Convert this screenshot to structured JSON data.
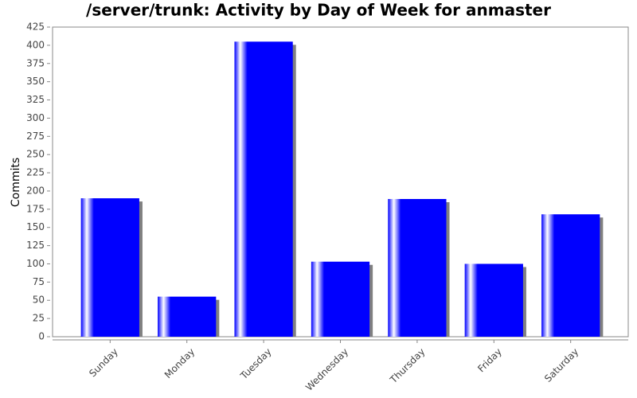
{
  "chart_data": {
    "type": "bar",
    "title": "/server/trunk: Activity by Day of Week for anmaster",
    "y_label": "Commits",
    "categories": [
      "Sunday",
      "Monday",
      "Tuesday",
      "Wednesday",
      "Thursday",
      "Friday",
      "Saturday"
    ],
    "values": [
      190,
      55,
      405,
      103,
      189,
      100,
      168
    ],
    "color": "#0000ff",
    "ylim": [
      0,
      425
    ],
    "yticks": [
      0,
      25,
      50,
      75,
      100,
      125,
      150,
      175,
      200,
      225,
      250,
      275,
      300,
      325,
      350,
      375,
      400,
      425
    ],
    "grid": false
  }
}
